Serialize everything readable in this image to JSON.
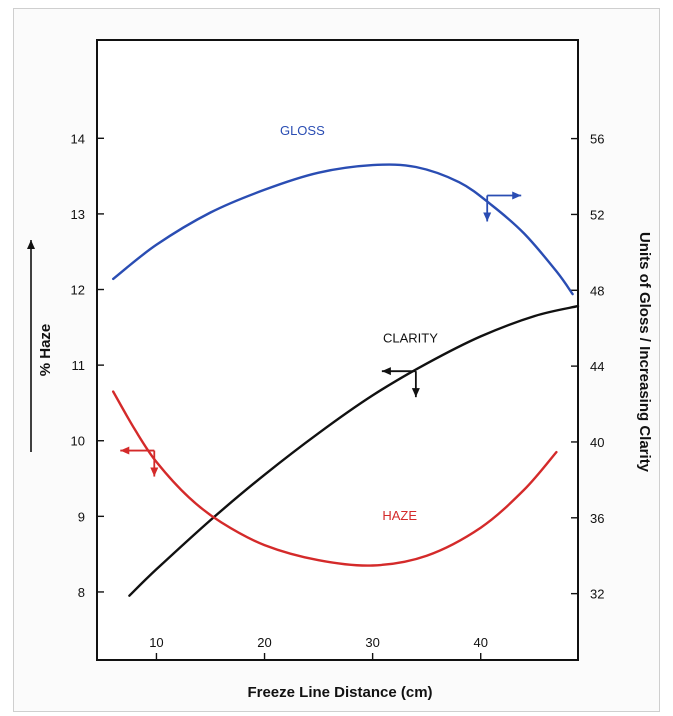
{
  "chart_data": {
    "type": "line",
    "title": "",
    "xlabel": "Freeze Line Distance (cm)",
    "ylabel_left": "% Haze",
    "ylabel_right": "Units of Gloss / Increasing Clarity",
    "xlim": [
      4.5,
      49
    ],
    "ylim_left": [
      7.1,
      15.3
    ],
    "ylim_right": [
      28.5,
      61.2
    ],
    "x_ticks": [
      10,
      20,
      30,
      40
    ],
    "y_left_ticks": [
      8,
      9,
      10,
      11,
      12,
      13,
      14
    ],
    "y_right_ticks": [
      32,
      36,
      40,
      44,
      48,
      52,
      56
    ],
    "grid": false,
    "series": [
      {
        "name": "GLOSS",
        "axis": "right",
        "color": "#2a4db3",
        "x": [
          6,
          10,
          15,
          20,
          25,
          30,
          34,
          38,
          41,
          44,
          47,
          48.5
        ],
        "y": [
          48.6,
          50.4,
          52.1,
          53.3,
          54.2,
          54.6,
          54.5,
          53.7,
          52.5,
          51.0,
          49.0,
          47.8
        ]
      },
      {
        "name": "CLARITY",
        "axis": "left",
        "color": "#111111",
        "x": [
          7.5,
          10,
          15,
          20,
          25,
          30,
          35,
          40,
          45,
          49
        ],
        "y": [
          7.95,
          8.3,
          8.95,
          9.55,
          10.1,
          10.6,
          11.02,
          11.38,
          11.65,
          11.78
        ]
      },
      {
        "name": "HAZE",
        "axis": "left",
        "color": "#d42a2a",
        "x": [
          6,
          8,
          10,
          13,
          16,
          20,
          25,
          30,
          35,
          40,
          44,
          47
        ],
        "y": [
          10.65,
          10.15,
          9.72,
          9.25,
          8.92,
          8.62,
          8.42,
          8.35,
          8.48,
          8.85,
          9.35,
          9.85
        ]
      }
    ],
    "annotations": [
      {
        "text": "GLOSS",
        "color": "#2a4db3",
        "x": 23.5,
        "y_right": 56.2,
        "axis": "right"
      },
      {
        "text": "CLARITY",
        "color": "#111111",
        "x": 33.5,
        "y_left": 11.3,
        "axis": "left"
      },
      {
        "text": "HAZE",
        "color": "#d42a2a",
        "x": 32.5,
        "y_left": 8.95,
        "axis": "left"
      }
    ],
    "axis_pointers": [
      {
        "series": "GLOSS",
        "color": "#2a4db3",
        "x": 40.6,
        "axis": "right",
        "y": 53.0,
        "direction": "right"
      },
      {
        "series": "CLARITY",
        "color": "#111111",
        "x": 34.0,
        "axis": "left",
        "y": 10.92,
        "direction": "left"
      },
      {
        "series": "HAZE",
        "color": "#d42a2a",
        "x": 9.8,
        "axis": "left",
        "y": 9.87,
        "direction": "left"
      }
    ]
  }
}
